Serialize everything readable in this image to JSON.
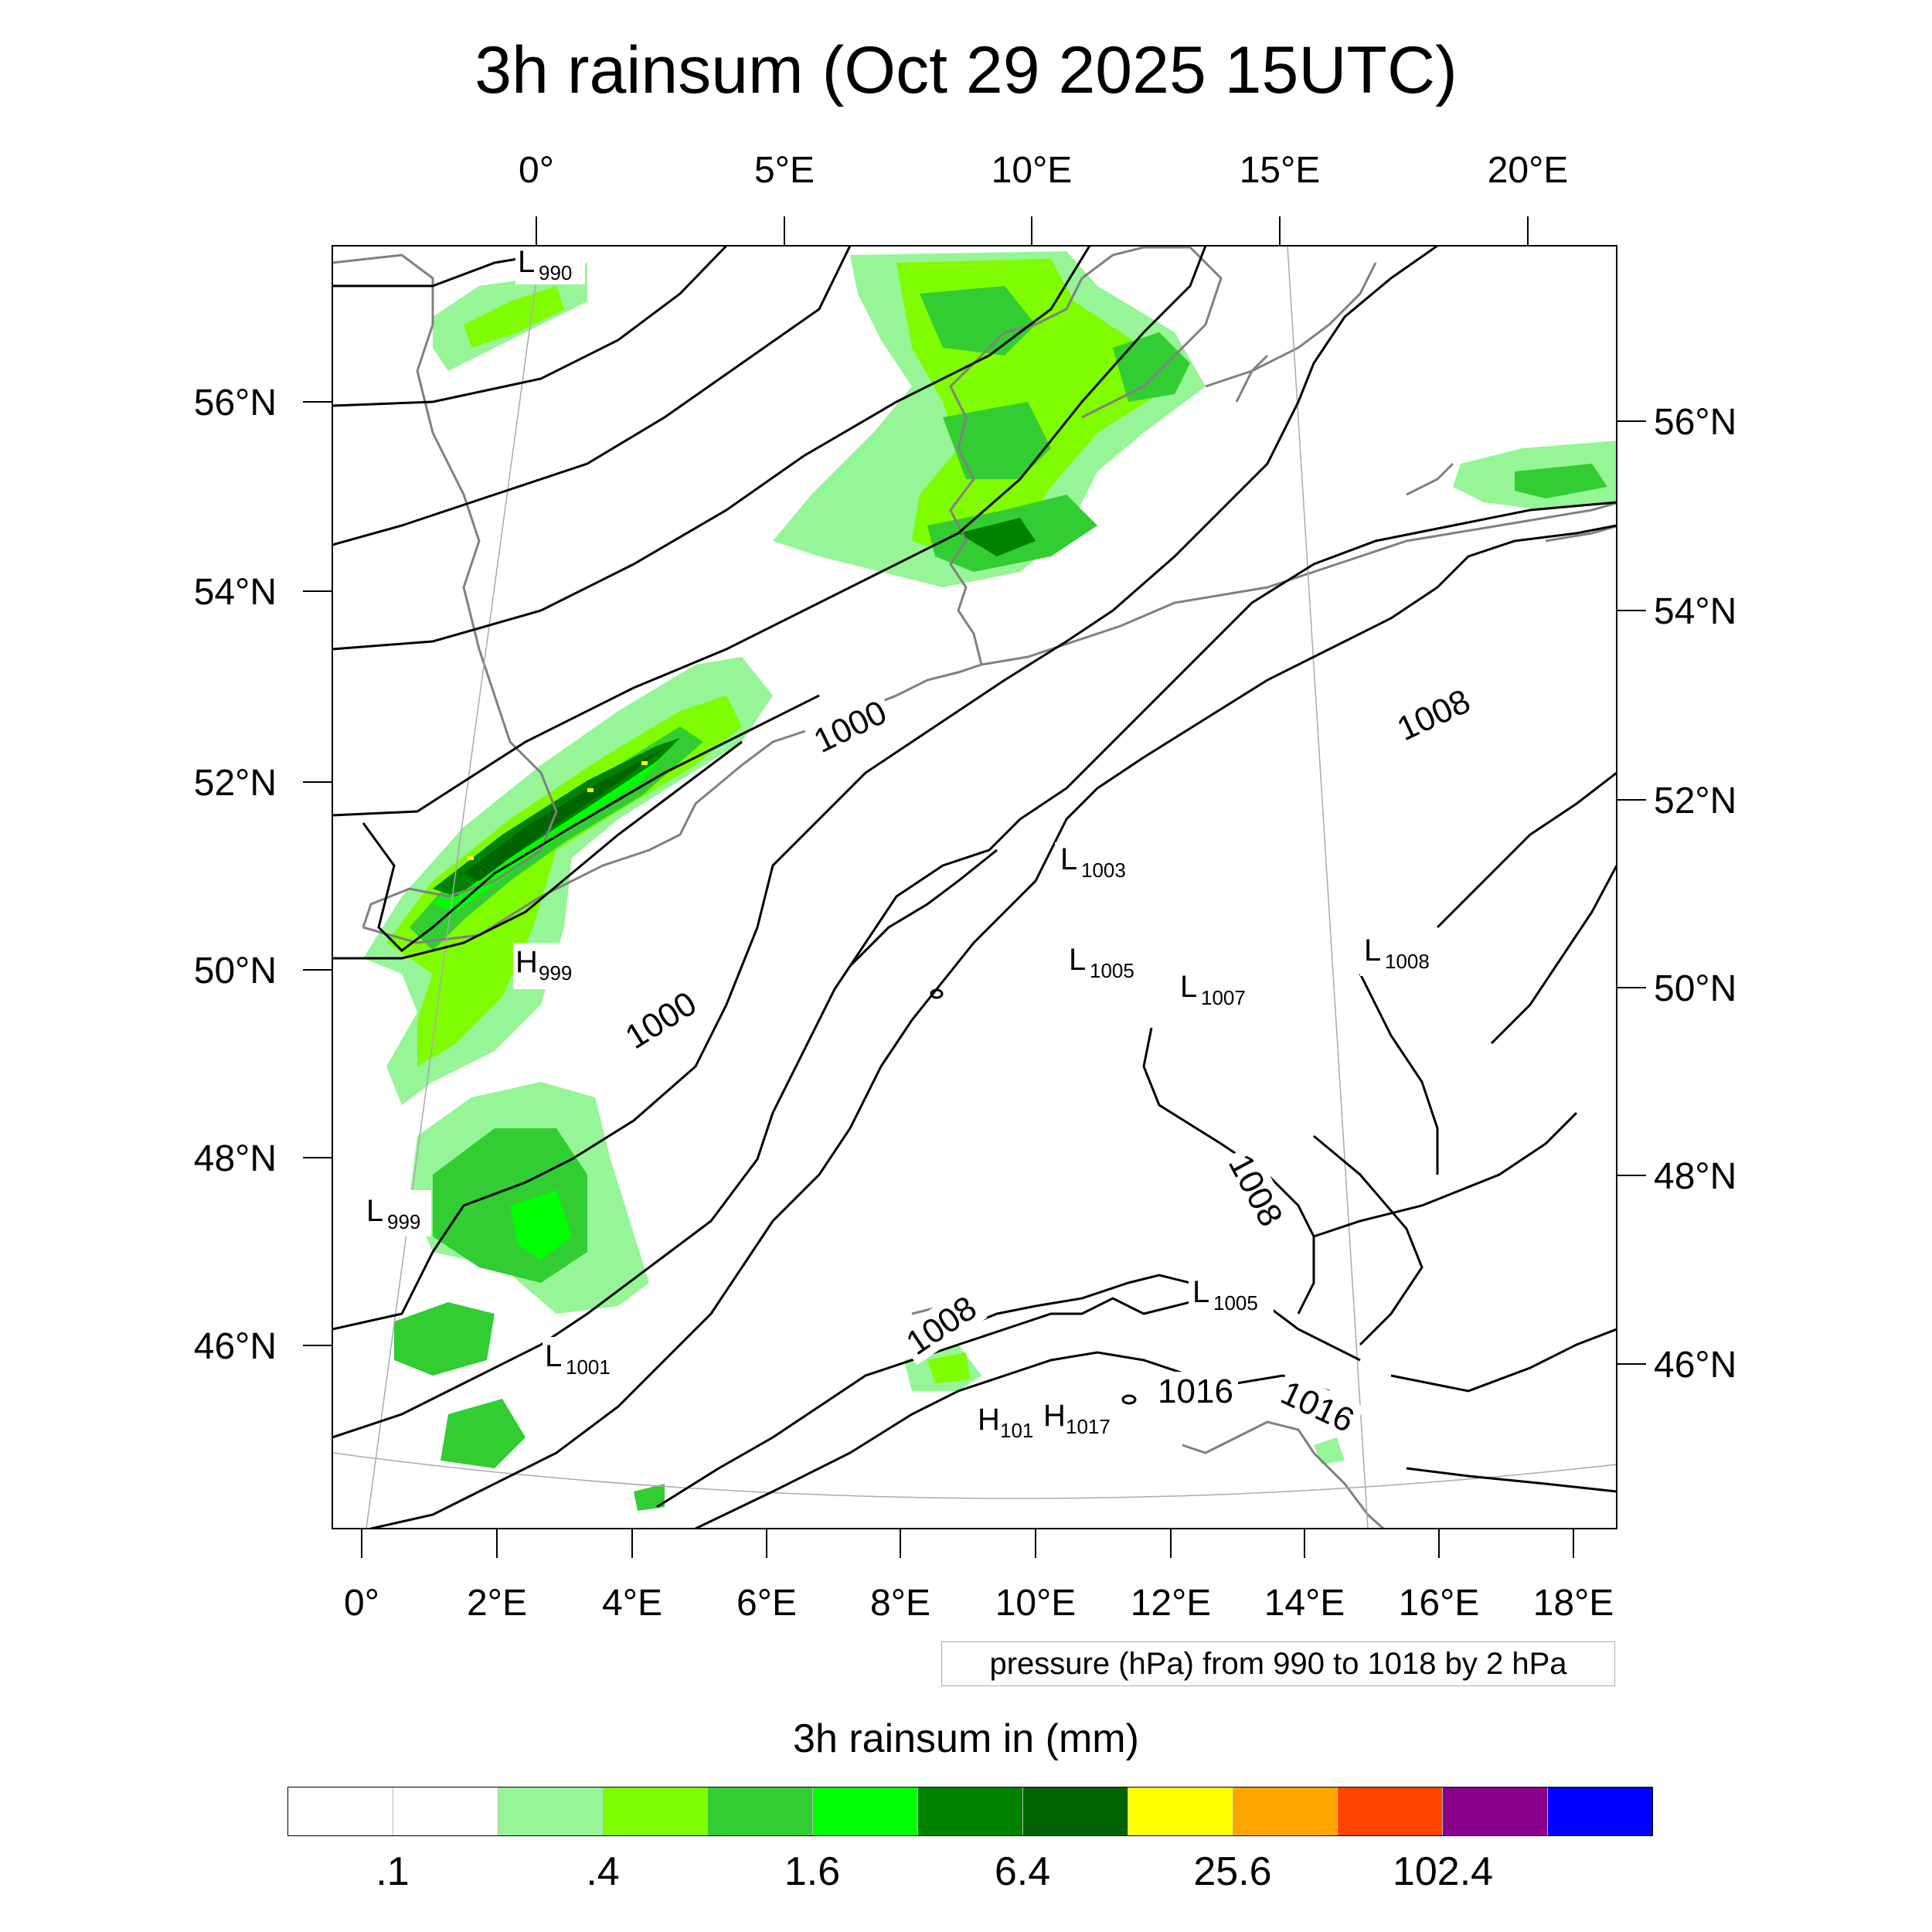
{
  "title": "3h rainsum (Oct 29 2025 15UTC)",
  "top_axis_ticks": [
    "0°",
    "5°E",
    "10°E",
    "15°E",
    "20°E"
  ],
  "bottom_axis_ticks": [
    "0°",
    "2°E",
    "4°E",
    "6°E",
    "8°E",
    "10°E",
    "12°E",
    "14°E",
    "16°E",
    "18°E"
  ],
  "left_axis_ticks": [
    "56°N",
    "54°N",
    "52°N",
    "50°N",
    "48°N",
    "46°N"
  ],
  "right_axis_ticks": [
    "56°N",
    "54°N",
    "52°N",
    "50°N",
    "48°N",
    "46°N"
  ],
  "pressure_centers": [
    {
      "type": "L",
      "value": "990"
    },
    {
      "type": "H",
      "value": "999"
    },
    {
      "type": "L",
      "value": "999"
    },
    {
      "type": "L",
      "value": "1001"
    },
    {
      "type": "L",
      "value": "1003"
    },
    {
      "type": "L",
      "value": "1005"
    },
    {
      "type": "L",
      "value": "1007"
    },
    {
      "type": "L",
      "value": "1008"
    },
    {
      "type": "L",
      "value": "1005"
    },
    {
      "type": "H",
      "value": "101"
    },
    {
      "type": "H",
      "value": "1017"
    }
  ],
  "isobar_labels": [
    "1000",
    "1000",
    "1008",
    "1008",
    "1008",
    "1016",
    "1016"
  ],
  "contour_note": "pressure (hPa) from 990 to 1018 by 2 hPa",
  "legend": {
    "title": "3h rainsum in (mm)",
    "colors": [
      "#ffffff",
      "#ffffff",
      "#96f596",
      "#7ffc00",
      "#32cd32",
      "#00ff00",
      "#008200",
      "#006400",
      "#ffff00",
      "#ffa500",
      "#ff4500",
      "#8b008b",
      "#0000ff"
    ],
    "labels": [
      ".1",
      ".4",
      "1.6",
      "6.4",
      "25.6",
      "102.4"
    ]
  }
}
